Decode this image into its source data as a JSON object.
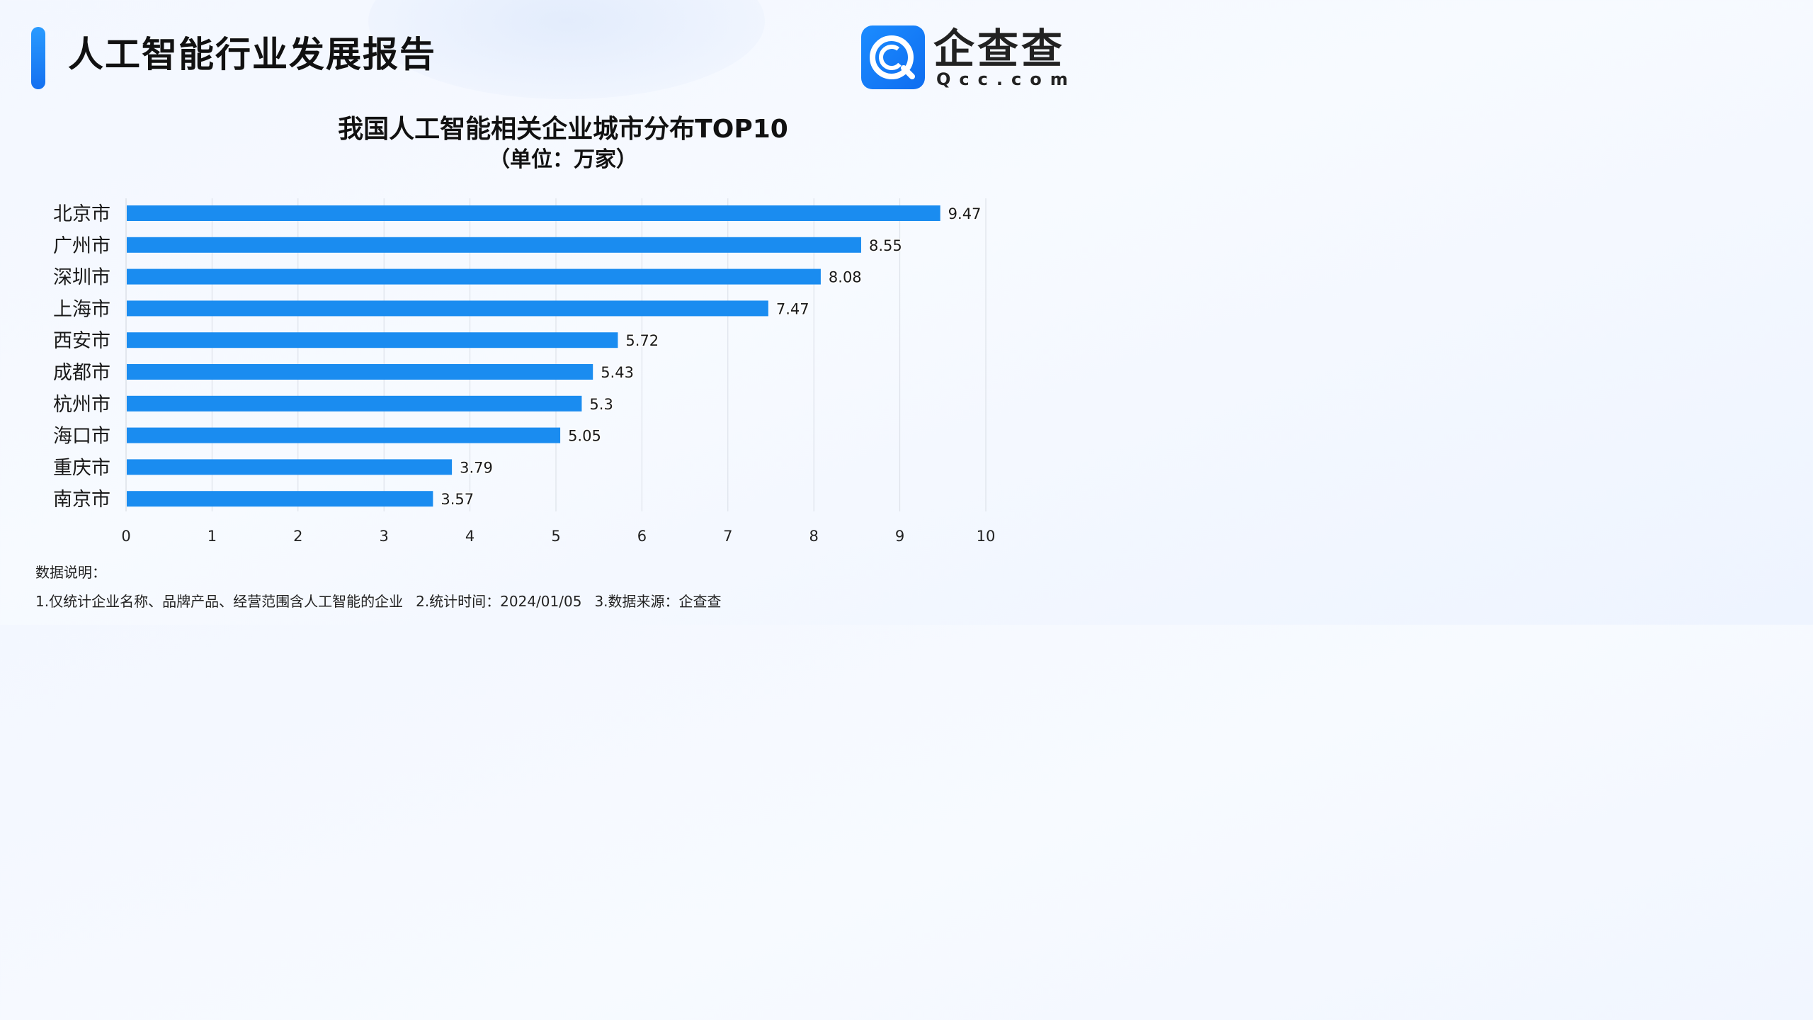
{
  "header": {
    "report_title": "人工智能行业发展报告",
    "logo_cn": "企查查",
    "logo_en": "Qcc.com"
  },
  "chart_data": {
    "type": "bar",
    "orientation": "horizontal",
    "title": "我国人工智能相关企业城市分布TOP10",
    "subtitle": "（单位：万家）",
    "categories": [
      "北京市",
      "广州市",
      "深圳市",
      "上海市",
      "西安市",
      "成都市",
      "杭州市",
      "海口市",
      "重庆市",
      "南京市"
    ],
    "values": [
      9.47,
      8.55,
      8.08,
      7.47,
      5.72,
      5.43,
      5.3,
      5.05,
      3.79,
      3.57
    ],
    "value_labels": [
      "9.47",
      "8.55",
      "8.08",
      "7.47",
      "5.72",
      "5.43",
      "5.3",
      "5.05",
      "3.79",
      "3.57"
    ],
    "xlim": [
      0,
      10
    ],
    "x_ticks": [
      "0",
      "1",
      "2",
      "3",
      "4",
      "5",
      "6",
      "7",
      "8",
      "9",
      "10"
    ],
    "grid": true,
    "bar_color": "#1a8cf0"
  },
  "notes": {
    "heading": "数据说明：",
    "items": [
      "1.仅统计企业名称、品牌产品、经营范围含人工智能的企业",
      "2.统计时间：2024/01/05",
      "3.数据来源：企查查"
    ]
  }
}
